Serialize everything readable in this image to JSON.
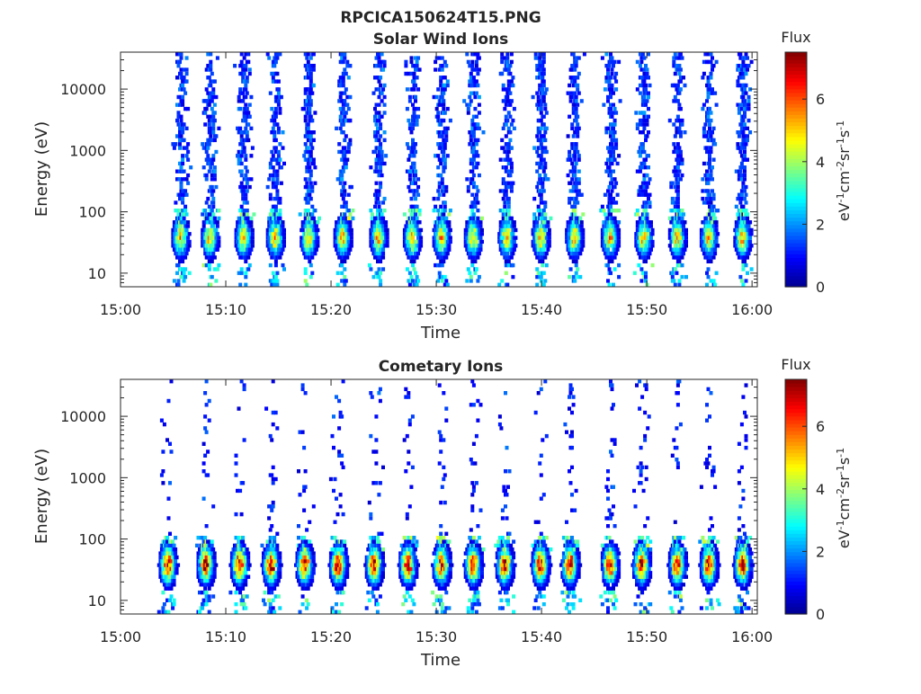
{
  "figure": {
    "title": "RPCICA150624T15.PNG"
  },
  "colormap": [
    "#00008f",
    "#0000ff",
    "#0080ff",
    "#00ffff",
    "#80ff80",
    "#ffff00",
    "#ff8000",
    "#ff0000",
    "#800000"
  ],
  "chart_data": [
    {
      "type": "heatmap",
      "id": "solar",
      "title": "Solar Wind Ions",
      "xlabel": "Time",
      "ylabel": "Energy (eV)",
      "x_ticks": [
        "15:00",
        "15:10",
        "15:20",
        "15:30",
        "15:40",
        "15:50",
        "16:00"
      ],
      "xlim_minutes": [
        0,
        60.5
      ],
      "y_scale": "log",
      "ylim": [
        6,
        40000
      ],
      "y_ticks": [
        {
          "value": 10,
          "label": "10"
        },
        {
          "value": 100,
          "label": "100"
        },
        {
          "value": 1000,
          "label": "1000"
        },
        {
          "value": 10000,
          "label": "10000"
        }
      ],
      "colorbar": {
        "title": "Flux",
        "label": "eV-1cm-2sr-1s-1",
        "range": [
          0,
          7.5
        ],
        "ticks": [
          "0",
          "2",
          "4",
          "6"
        ]
      },
      "sweep_times_minutes": [
        5.6,
        8.4,
        11.6,
        14.6,
        17.8,
        21.0,
        24.4,
        27.6,
        30.4,
        33.4,
        36.6,
        39.8,
        43.0,
        46.4,
        49.6,
        52.8,
        55.8,
        59.0
      ],
      "peak_energy_ev": 35,
      "peak_flux": 5.2,
      "high_energy_flux": 1.2
    },
    {
      "type": "heatmap",
      "id": "cometary",
      "title": "Cometary Ions",
      "xlabel": "Time",
      "ylabel": "Energy (eV)",
      "x_ticks": [
        "15:00",
        "15:10",
        "15:20",
        "15:30",
        "15:40",
        "15:50",
        "16:00"
      ],
      "xlim_minutes": [
        0,
        60.5
      ],
      "y_scale": "log",
      "ylim": [
        6,
        40000
      ],
      "y_ticks": [
        {
          "value": 10,
          "label": "10"
        },
        {
          "value": 100,
          "label": "100"
        },
        {
          "value": 1000,
          "label": "1000"
        },
        {
          "value": 10000,
          "label": "10000"
        }
      ],
      "colorbar": {
        "title": "Flux",
        "label": "eV-1cm-2sr-1s-1",
        "range": [
          0,
          7.5
        ],
        "ticks": [
          "0",
          "2",
          "4",
          "6"
        ]
      },
      "sweep_times_minutes": [
        4.4,
        8.0,
        11.2,
        14.2,
        17.4,
        20.6,
        24.0,
        27.2,
        30.4,
        33.4,
        36.4,
        39.8,
        42.6,
        46.4,
        49.4,
        52.8,
        55.8,
        59.0
      ],
      "peak_energy_ev": 35,
      "peak_flux": 6.8,
      "high_energy_flux": 1.0
    }
  ]
}
